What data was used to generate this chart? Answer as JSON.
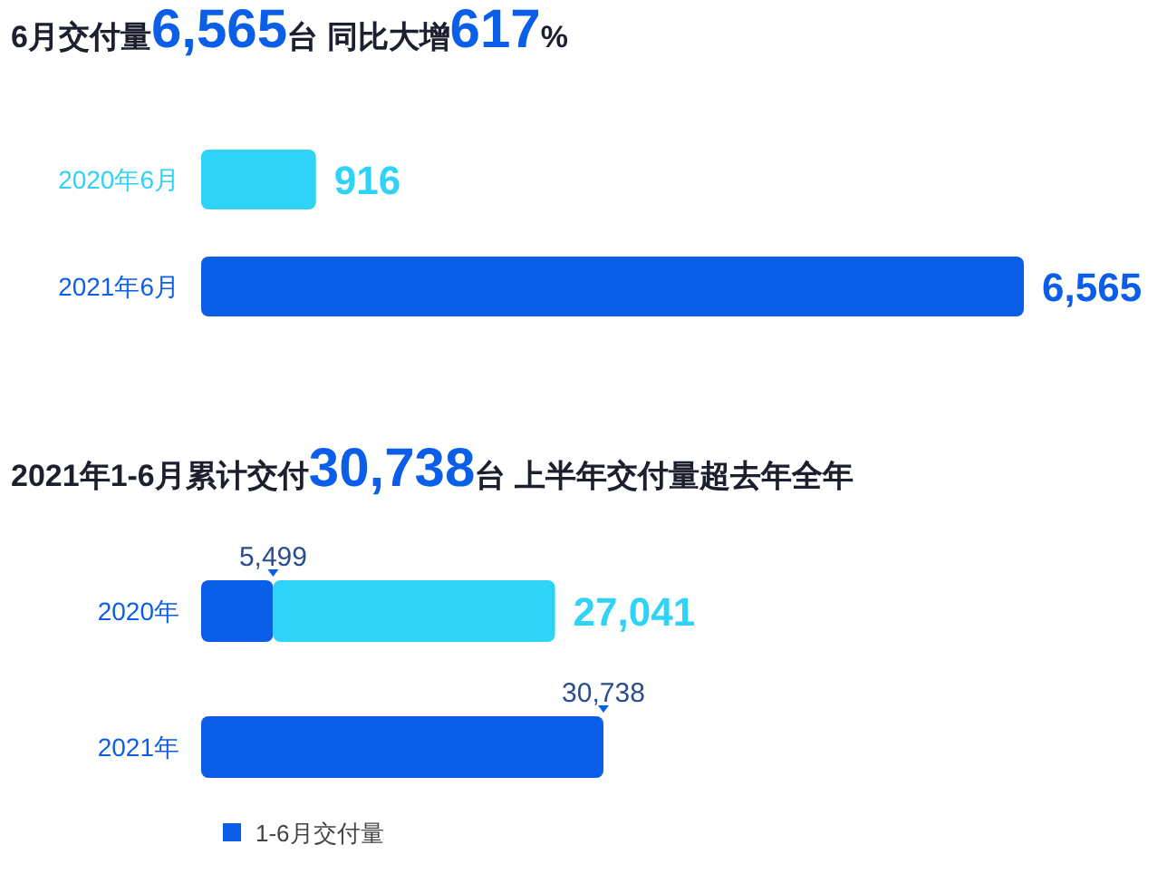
{
  "chart_data": [
    {
      "type": "bar",
      "orientation": "horizontal",
      "title": "6月交付量**6,565**台 同比大增**617**%",
      "categories": [
        "2020年6月",
        "2021年6月"
      ],
      "values": [
        916,
        6565
      ],
      "colors": [
        "#2ed3f7",
        "#0b5ee8"
      ],
      "value_labels": [
        "916",
        "6,565"
      ]
    },
    {
      "type": "bar",
      "orientation": "horizontal",
      "stacked": true,
      "title": "2021年1-6月累计交付**30,738**台 上半年交付量超去年全年",
      "categories": [
        "2020年",
        "2021年"
      ],
      "series": [
        {
          "name": "1-6月交付量",
          "color": "#0b5ee8",
          "values": [
            5499,
            30738
          ],
          "value_labels": [
            "5,499",
            "30,738"
          ]
        },
        {
          "color": "#2ed3f7",
          "values": [
            21542,
            null
          ]
        }
      ],
      "totals": [
        "27,041",
        null
      ],
      "legend": "bottom left"
    }
  ]
}
